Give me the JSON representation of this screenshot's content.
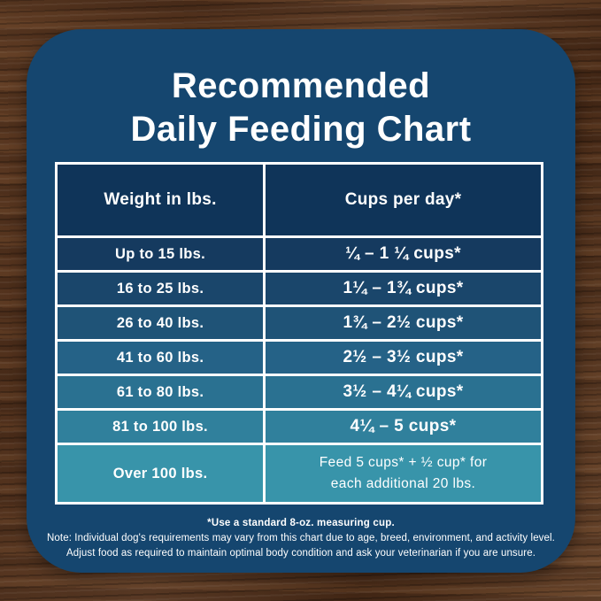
{
  "card": {
    "title_line1": "Recommended",
    "title_line2": "Daily Feeding Chart"
  },
  "table": {
    "headers": [
      "Weight in lbs.",
      "Cups per day*"
    ],
    "rows": [
      {
        "weight": "Up to 15 lbs.",
        "cups": "¼ – 1 ¼ cups*"
      },
      {
        "weight": "16 to 25 lbs.",
        "cups": "1¼ – 1¾ cups*"
      },
      {
        "weight": "26 to 40 lbs.",
        "cups": "1¾ – 2½ cups*"
      },
      {
        "weight": "41 to 60 lbs.",
        "cups": "2½ – 3½ cups*"
      },
      {
        "weight": "61 to 80 lbs.",
        "cups": "3½ – 4¼ cups*"
      },
      {
        "weight": "81 to 100 lbs.",
        "cups": "4¼ – 5 cups*"
      },
      {
        "weight": "Over 100 lbs.",
        "cups": "Feed 5 cups* + ½ cup* for\neach additional 20 lbs."
      }
    ],
    "header_bg": "#0F3459",
    "row_colors": [
      "#153A5F",
      "#1A466B",
      "#1F5377",
      "#256287",
      "#2A7191",
      "#30809C",
      "#3894AA"
    ]
  },
  "footnotes": {
    "cup_note": "*Use a standard 8-oz. measuring cup.",
    "note_line1": "Note: Individual dog's requirements may vary from this chart due to age, breed, environment, and activity level.",
    "note_line2": "Adjust food as required to maintain optimal body condition and ask your veterinarian if you are unsure."
  },
  "colors": {
    "card_bg": "#15466F",
    "table_border": "#FFFFFF",
    "text": "#FFFFFF"
  },
  "chart_data": {
    "type": "table",
    "title": "Recommended Daily Feeding Chart",
    "columns": [
      "Weight in lbs.",
      "Cups per day*"
    ],
    "rows": [
      [
        "Up to 15 lbs.",
        "¼ – 1 ¼ cups*"
      ],
      [
        "16 to 25 lbs.",
        "1¼ – 1¾ cups*"
      ],
      [
        "26 to 40 lbs.",
        "1¾ – 2½ cups*"
      ],
      [
        "41 to 60 lbs.",
        "2½ – 3½ cups*"
      ],
      [
        "61 to 80 lbs.",
        "3½ – 4¼ cups*"
      ],
      [
        "81 to 100 lbs.",
        "4¼ – 5 cups*"
      ],
      [
        "Over 100 lbs.",
        "Feed 5 cups* + ½ cup* for each additional 20 lbs."
      ]
    ],
    "footnote": "*Use a standard 8-oz. measuring cup."
  }
}
